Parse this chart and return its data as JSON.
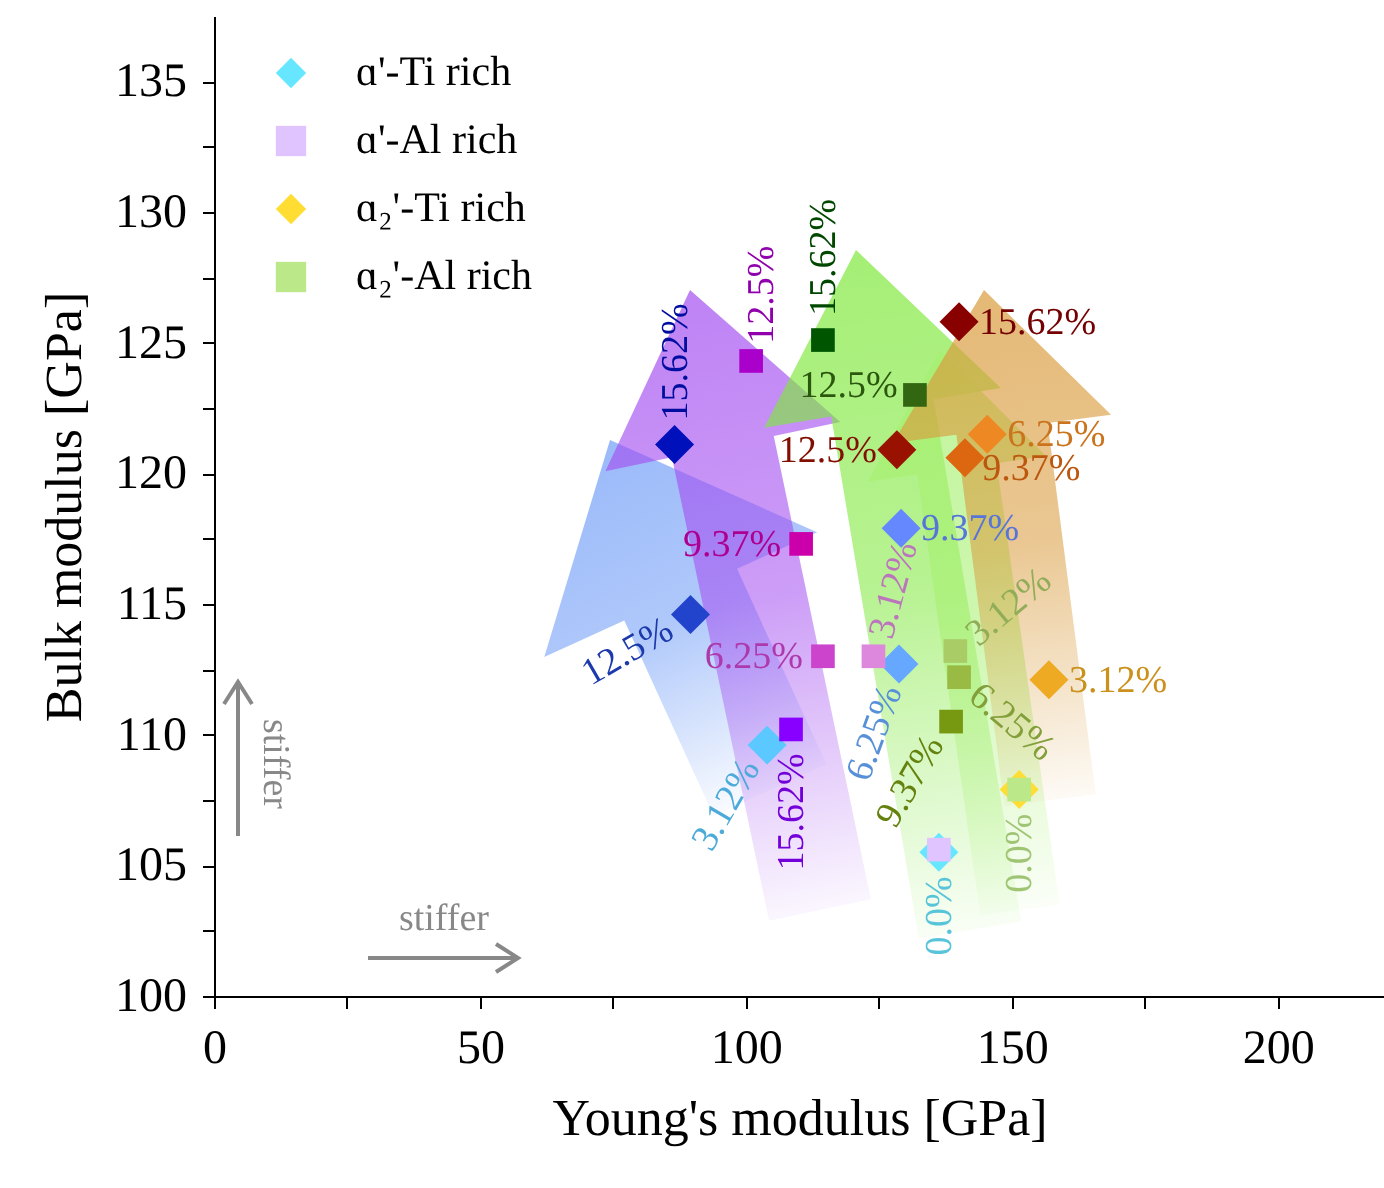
{
  "chart_data": {
    "type": "scatter",
    "xlabel": "Young's modulus [GPa]",
    "ylabel": "Bulk modulus [GPa]",
    "xlim": [
      0,
      220
    ],
    "ylim": [
      100,
      137.5
    ],
    "xticks": [
      0,
      {
        "value": 25,
        "label": null
      },
      50,
      {
        "value": 75,
        "label": null
      },
      100,
      {
        "value": 125,
        "label": null
      },
      150,
      {
        "value": 175,
        "label": null
      },
      200
    ],
    "yticks": [
      100,
      {
        "value": 102.5,
        "label": null
      },
      105,
      {
        "value": 107.5,
        "label": null
      },
      110,
      {
        "value": 112.5,
        "label": null
      },
      115,
      {
        "value": 117.5,
        "label": null
      },
      120,
      {
        "value": 122.5,
        "label": null
      },
      125,
      {
        "value": 127.5,
        "label": null
      },
      130,
      {
        "value": 132.5,
        "label": null
      },
      135
    ],
    "legend": "top left",
    "grid": false,
    "annotations": [
      "stiffer",
      "stiffer",
      {
        "text": "0.0%",
        "x": 136.3,
        "y": 105.5
      },
      {
        "text": "3.12%",
        "x": 104,
        "y": 109.6
      },
      {
        "text": "6.25%",
        "x": 128.8,
        "y": 112.7
      },
      {
        "text": "9.37%",
        "x": 129.2,
        "y": 117.9
      },
      {
        "text": "12.5%",
        "x": 89.6,
        "y": 114.6
      },
      {
        "text": "15.62%",
        "x": 86.6,
        "y": 121.1
      },
      {
        "text": "3.12%",
        "x": 124,
        "y": 113
      },
      {
        "text": "6.25%",
        "x": 114.5,
        "y": 113
      },
      {
        "text": "9.37%",
        "x": 110.4,
        "y": 117.3
      },
      {
        "text": "12.5%",
        "x": 101,
        "y": 124.3
      },
      {
        "text": "15.62%",
        "x": 108.5,
        "y": 110.2
      },
      {
        "text": "0.0%",
        "x": 151.4,
        "y": 107.9
      },
      {
        "text": "3.12%",
        "x": 157,
        "y": 112.1
      },
      {
        "text": "6.25%",
        "x": 145.4,
        "y": 121.5
      },
      {
        "text": "9.37%",
        "x": 141.2,
        "y": 120.6
      },
      {
        "text": "12.5%",
        "x": 128.4,
        "y": 120.9
      },
      {
        "text": "15.62%",
        "x": 140.1,
        "y": 125.8
      },
      {
        "text": "3.12%",
        "x": 139.4,
        "y": 113.2
      },
      {
        "text": "6.25%",
        "x": 140.1,
        "y": 112.2
      },
      {
        "text": "9.37%",
        "x": 138.6,
        "y": 110.5
      },
      {
        "text": "12.5%",
        "x": 131.8,
        "y": 123
      },
      {
        "text": "15.62%",
        "x": 114.5,
        "y": 125.1
      }
    ],
    "series": [
      {
        "name": "ɑ'-Ti rich",
        "color": "#66e6ff",
        "marker": "diamond",
        "x": [
          136.3,
          104,
          128.8,
          129.2,
          89.6,
          86.6
        ],
        "values": [
          105.5,
          109.6,
          112.7,
          117.9,
          114.6,
          121.1
        ],
        "colors": [
          "#66e6ff",
          "#5bc8ff",
          "#66a8ff",
          "#6688ff",
          "#2244cc",
          "#0011bb"
        ]
      },
      {
        "name": "ɑ'-Al rich",
        "color": "#e0c4ff",
        "marker": "square",
        "x": [
          136.3,
          124,
          114.5,
          110.4,
          101,
          108.5
        ],
        "values": [
          105.6,
          113,
          113,
          117.3,
          124.3,
          110.2
        ],
        "colors": [
          "#e0c4ff",
          "#dd88dd",
          "#cc44cc",
          "#cc00aa",
          "#aa00cc",
          "#8800ff"
        ]
      },
      {
        "name": "ɑ₂'-Ti rich",
        "color": "#ffdd33",
        "marker": "diamond",
        "x": [
          151.4,
          157,
          145.4,
          141.2,
          128.4,
          140.1
        ],
        "values": [
          107.9,
          112.1,
          121.5,
          120.6,
          120.9,
          125.8
        ],
        "colors": [
          "#ffdd33",
          "#eeaa22",
          "#ee8822",
          "#dd6611",
          "#991100",
          "#880000"
        ]
      },
      {
        "name": "ɑ₂'-Al rich",
        "color": "#bbe888",
        "marker": "square",
        "x": [
          151.4,
          139.4,
          140.1,
          138.6,
          131.8,
          114.5
        ],
        "values": [
          107.9,
          113.2,
          112.2,
          110.5,
          123,
          125.1
        ],
        "colors": [
          "#bbe888",
          "#aacc66",
          "#99bb44",
          "#779911",
          "#336611",
          "#005500"
        ]
      }
    ]
  }
}
